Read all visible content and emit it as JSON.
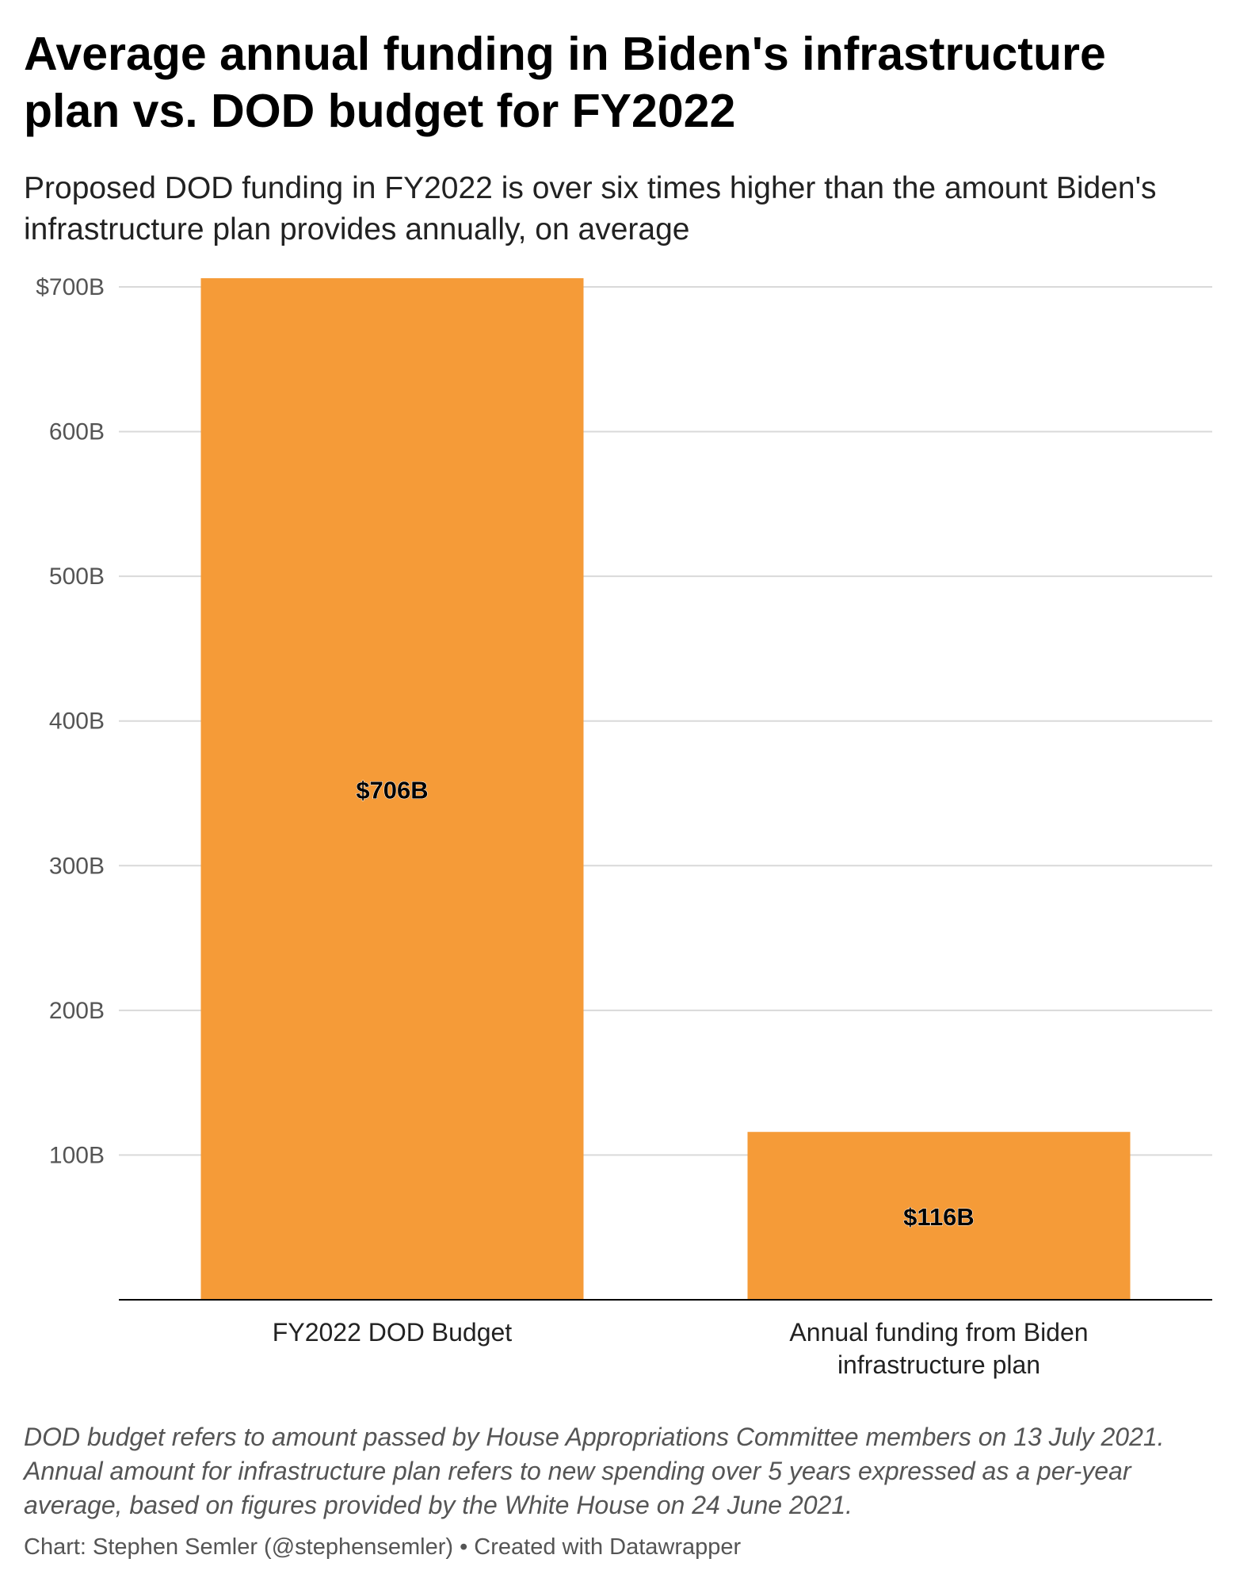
{
  "header": {
    "title": "Average annual funding in Biden's infrastructure plan vs. DOD budget for FY2022",
    "subtitle": "Proposed DOD funding in FY2022 is over six times higher than the amount Biden's infrastructure plan provides annually, on average"
  },
  "chart_data": {
    "type": "bar",
    "title": "Average annual funding in Biden's infrastructure plan vs. DOD budget for FY2022",
    "subtitle": "Proposed DOD funding in FY2022 is over six times higher than the amount Biden's infrastructure plan provides annually, on average",
    "categories": [
      "FY2022 DOD Budget",
      "Annual funding from Biden infrastructure plan"
    ],
    "category_lines": [
      [
        "FY2022 DOD Budget"
      ],
      [
        "Annual funding from Biden",
        "infrastructure plan"
      ]
    ],
    "values": [
      706,
      116
    ],
    "value_labels": [
      "$706B",
      "$116B"
    ],
    "unit": "billion USD",
    "ylim": [
      0,
      700
    ],
    "yticks": [
      100,
      200,
      300,
      400,
      500,
      600,
      700
    ],
    "ytick_labels": [
      "100B",
      "200B",
      "300B",
      "400B",
      "500B",
      "600B",
      "$700B"
    ],
    "grid": true,
    "legend": "none",
    "bar_color": "#f59b38",
    "grid_color": "#d9d9d9",
    "axis_color": "#000000"
  },
  "footer": {
    "note": "DOD budget refers to amount passed by House Appropriations Committee members on 13 July 2021. Annual amount for infrastructure plan refers to new spending over 5 years expressed as a per-year average, based on figures provided by the White House on 24 June 2021.",
    "credit": "Chart: Stephen Semler (@stephensemler) • Created with Datawrapper"
  }
}
